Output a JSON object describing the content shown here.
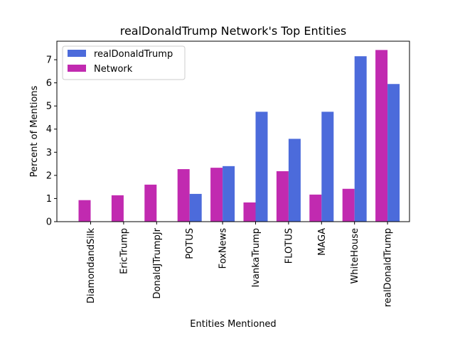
{
  "chart_data": {
    "type": "bar",
    "title": "realDonaldTrump Network's Top Entities",
    "xlabel": "Entities Mentioned",
    "ylabel": "Percent of Mentions",
    "ylim": [
      0,
      7.8
    ],
    "yticks": [
      0,
      1,
      2,
      3,
      4,
      5,
      6,
      7
    ],
    "grid": false,
    "legend_position": "top-left",
    "categories": [
      "DiamondandSilk",
      "EricTrump",
      "DonaldJTrumpJr",
      "POTUS",
      "FoxNews",
      "IvankaTrump",
      "FLOTUS",
      "MAGA",
      "WhiteHouse",
      "realDonaldTrump"
    ],
    "series": [
      {
        "name": "realDonaldTrump",
        "color": "#4c6bdb",
        "values": [
          0,
          0,
          0,
          1.2,
          2.4,
          4.75,
          3.58,
          4.75,
          7.15,
          5.95
        ]
      },
      {
        "name": "Network",
        "color": "#c12ab0",
        "values": [
          0.93,
          1.14,
          1.6,
          2.27,
          2.33,
          0.83,
          2.18,
          1.17,
          1.42,
          7.42
        ]
      }
    ]
  }
}
